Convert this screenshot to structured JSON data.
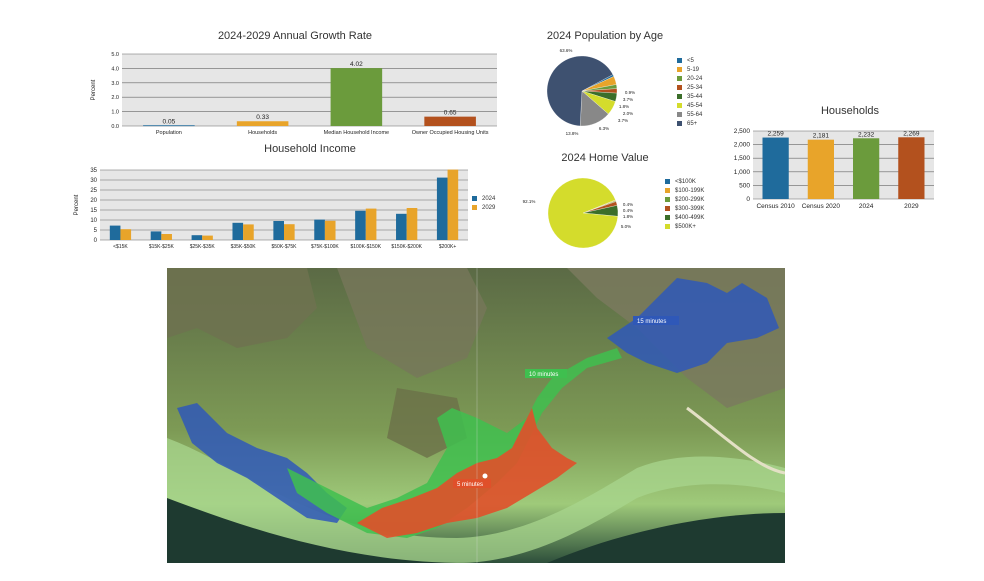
{
  "colors": {
    "blue": "#1f6b9c",
    "orange": "#e8a42a",
    "green": "#6b9b3c",
    "rust": "#b3511e",
    "plot_bg": "#e6e6e6",
    "navy": "#3e5170",
    "yellow_green": "#d4dc2c",
    "gray": "#888888"
  },
  "chart_data": [
    {
      "type": "bar",
      "title": "2024-2029 Annual Growth Rate",
      "ylabel": "Percent",
      "categories": [
        "Population",
        "Households",
        "Median Household Income",
        "Owner Occupied Housing Units"
      ],
      "values": [
        0.05,
        0.33,
        4.02,
        0.65
      ],
      "value_labels": [
        "0.05",
        "0.33",
        "4.02",
        "0.65"
      ],
      "bar_colors": [
        "#1f6b9c",
        "#e8a42a",
        "#6b9b3c",
        "#b3511e"
      ],
      "ylim": [
        0,
        5
      ],
      "yticks": [
        "0.0",
        "1.0",
        "2.0",
        "3.0",
        "4.0",
        "5.0"
      ],
      "grid": true
    },
    {
      "type": "bar",
      "title": "Household Income",
      "ylabel": "Percent",
      "categories": [
        "<$15K",
        "$15K-$25K",
        "$25K-$35K",
        "$35K-$50K",
        "$50K-$75K",
        "$75K-$100K",
        "$100K-$150K",
        "$150K-$200K",
        "$200K+"
      ],
      "series": [
        {
          "name": "2024",
          "values": [
            7.2,
            4.3,
            2.4,
            8.6,
            9.5,
            10.2,
            14.6,
            13.1,
            31.2
          ]
        },
        {
          "name": "2029",
          "values": [
            5.4,
            3.0,
            2.2,
            7.8,
            7.9,
            9.6,
            15.7,
            16.0,
            35.2
          ]
        }
      ],
      "ylim": [
        0,
        35
      ],
      "yticks": [
        "0",
        "5",
        "10",
        "15",
        "20",
        "25",
        "30",
        "35"
      ],
      "legend_position": "right",
      "grid": true
    },
    {
      "type": "pie",
      "title": "2024 Population by Age",
      "categories": [
        "<5",
        "5-19",
        "20-24",
        "25-34",
        "35-44",
        "45-54",
        "55-64",
        "65+"
      ],
      "values": [
        0.9,
        3.7,
        1.8,
        2.0,
        3.7,
        6.3,
        13.8,
        63.6
      ],
      "slice_labels": [
        "0.9%",
        "3.7%",
        "1.8%",
        "2.0%",
        "3.7%",
        "6.3%",
        "13.8%",
        "63.6%"
      ],
      "colors": [
        "#1f6b9c",
        "#e8a42a",
        "#6b9b3c",
        "#b3511e",
        "#3b6e2a",
        "#d4dc2c",
        "#888888",
        "#3e5170"
      ],
      "legend_position": "right"
    },
    {
      "type": "pie",
      "title": "2024 Home Value",
      "categories": [
        "<$100K",
        "$100-199K",
        "$200-299K",
        "$300-399K",
        "$400-499K",
        "$500K+"
      ],
      "values": [
        0.0,
        0.4,
        0.4,
        1.8,
        5.0,
        92.1
      ],
      "slice_labels": [
        "",
        "0.4%",
        "0.4%",
        "1.8%",
        "5.0%",
        "92.1%"
      ],
      "colors": [
        "#1f6b9c",
        "#e8a42a",
        "#6b9b3c",
        "#b3511e",
        "#3b6e2a",
        "#d4dc2c"
      ],
      "legend_position": "right"
    },
    {
      "type": "bar",
      "title": "Households",
      "categories": [
        "Census 2010",
        "Census 2020",
        "2024",
        "2029"
      ],
      "values": [
        2259,
        2181,
        2232,
        2269
      ],
      "value_labels": [
        "2,259",
        "2,181",
        "2,232",
        "2,269"
      ],
      "bar_colors": [
        "#1f6b9c",
        "#e8a42a",
        "#6b9b3c",
        "#b3511e"
      ],
      "ylim": [
        0,
        2500
      ],
      "yticks": [
        "0",
        "500",
        "1,000",
        "1,500",
        "2,000",
        "2,500"
      ],
      "grid": true
    }
  ],
  "map": {
    "labels": [
      "15 minutes",
      "10 minutes",
      "5 minutes"
    ],
    "zone_colors": [
      "#2f58b8",
      "#3fbf4f",
      "#e0502a"
    ]
  }
}
